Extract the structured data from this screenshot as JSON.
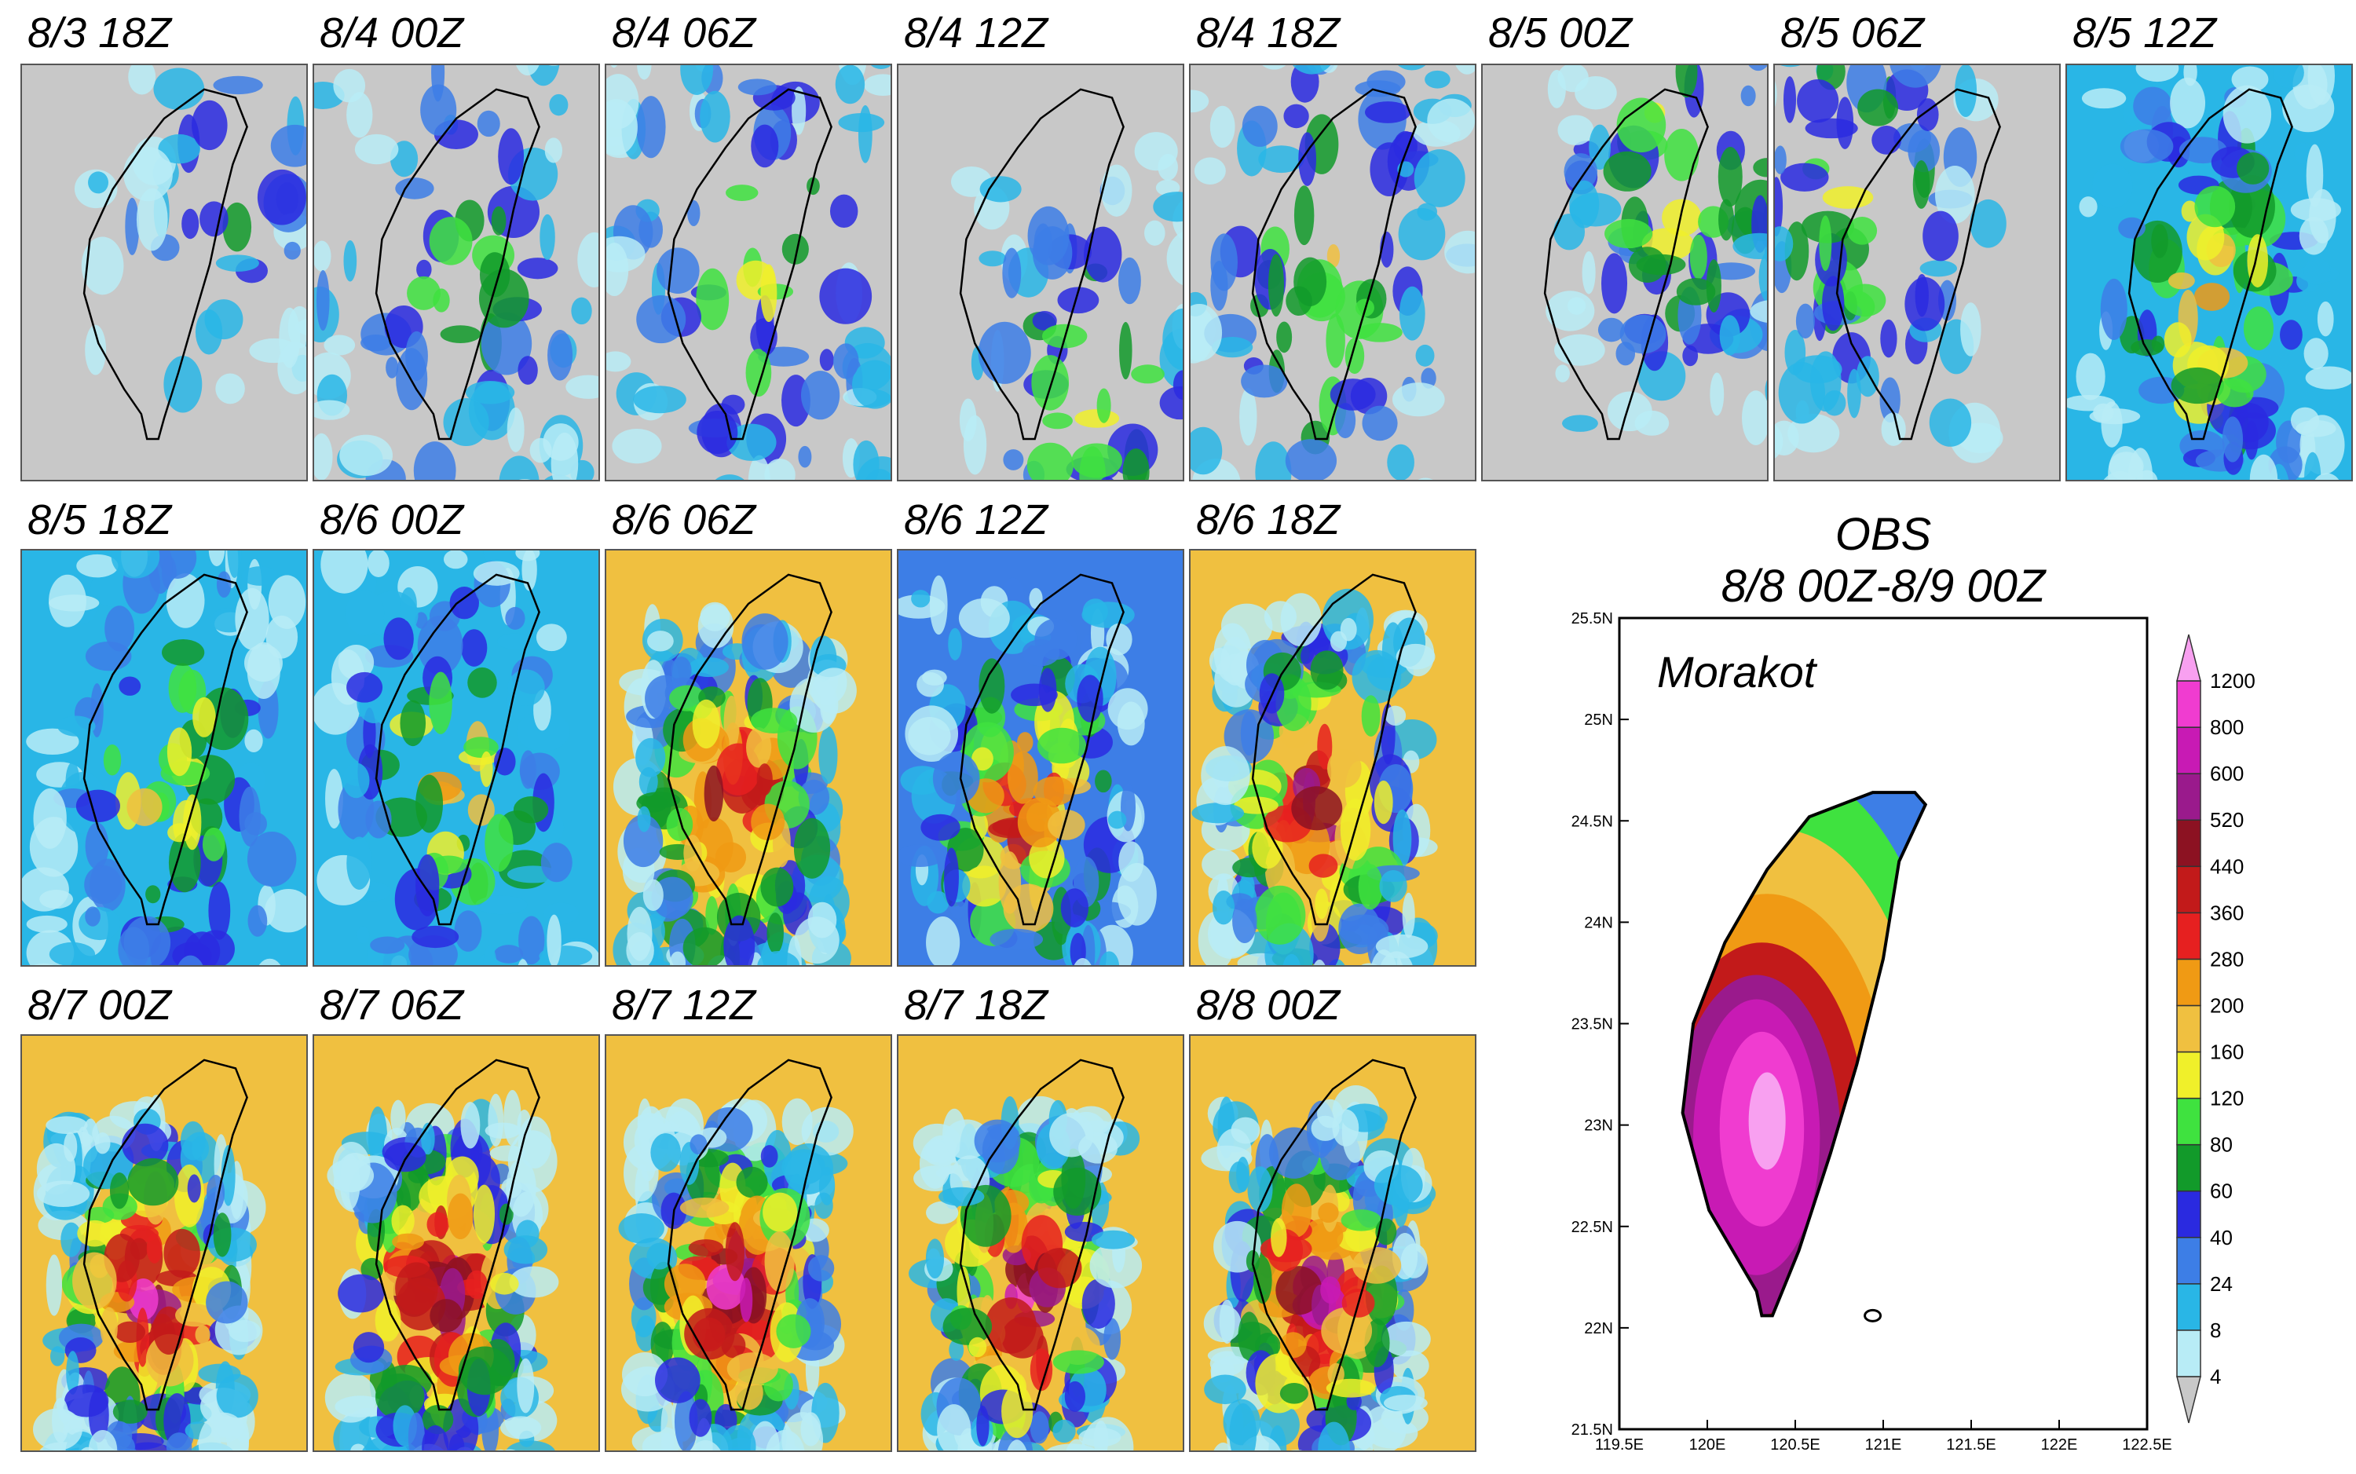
{
  "panels": [
    {
      "label": "8/3 18Z",
      "intensity": 0.05,
      "focus": "north"
    },
    {
      "label": "8/4 00Z",
      "intensity": 0.15,
      "focus": "scatter"
    },
    {
      "label": "8/4 06Z",
      "intensity": 0.22,
      "focus": "scatter"
    },
    {
      "label": "8/4 12Z",
      "intensity": 0.22,
      "focus": "southeast"
    },
    {
      "label": "8/4 18Z",
      "intensity": 0.25,
      "focus": "scatter"
    },
    {
      "label": "8/5 00Z",
      "intensity": 0.3,
      "focus": "northeast"
    },
    {
      "label": "8/5 06Z",
      "intensity": 0.25,
      "focus": "west"
    },
    {
      "label": "8/5 12Z",
      "intensity": 0.38,
      "focus": "central"
    },
    {
      "label": "8/5 18Z",
      "intensity": 0.32,
      "focus": "central"
    },
    {
      "label": "8/6 00Z",
      "intensity": 0.32,
      "focus": "central"
    },
    {
      "label": "8/6 06Z",
      "intensity": 0.72,
      "focus": "southwest"
    },
    {
      "label": "8/6 12Z",
      "intensity": 0.55,
      "focus": "southwest"
    },
    {
      "label": "8/6 18Z",
      "intensity": 0.72,
      "focus": "southwest"
    },
    {
      "label": "8/7 00Z",
      "intensity": 0.82,
      "focus": "southwest"
    },
    {
      "label": "8/7 06Z",
      "intensity": 0.86,
      "focus": "southwest"
    },
    {
      "label": "8/7 12Z",
      "intensity": 0.86,
      "focus": "southwest"
    },
    {
      "label": "8/7 18Z",
      "intensity": 0.86,
      "focus": "southwest"
    },
    {
      "label": "8/8 00Z",
      "intensity": 0.82,
      "focus": "southwest"
    }
  ],
  "obs": {
    "title_line1": "OBS",
    "title_line2": "8/8 00Z-8/9  00Z",
    "storm_name": "Morakot",
    "lat_labels": [
      "25.5N",
      "25N",
      "24.5N",
      "24N",
      "23.5N",
      "23N",
      "22.5N",
      "22N",
      "21.5N"
    ],
    "lon_labels": [
      "119.5E",
      "120E",
      "120.5E",
      "121E",
      "121.5E",
      "122E",
      "122.5E"
    ]
  },
  "colorbar": {
    "levels": [
      "4",
      "8",
      "24",
      "40",
      "60",
      "80",
      "120",
      "160",
      "200",
      "280",
      "360",
      "440",
      "520",
      "600",
      "800",
      "1200"
    ],
    "colors": [
      "#c8c8c8",
      "#b8ecf6",
      "#29b6e6",
      "#3d7ee6",
      "#2a2ae0",
      "#129a2a",
      "#3fe23f",
      "#f0f02a",
      "#f0c040",
      "#f09a14",
      "#e62020",
      "#c21a1a",
      "#8c1222",
      "#9a1a8c",
      "#c81ab4",
      "#f03cd0",
      "#f8a0f0"
    ]
  }
}
